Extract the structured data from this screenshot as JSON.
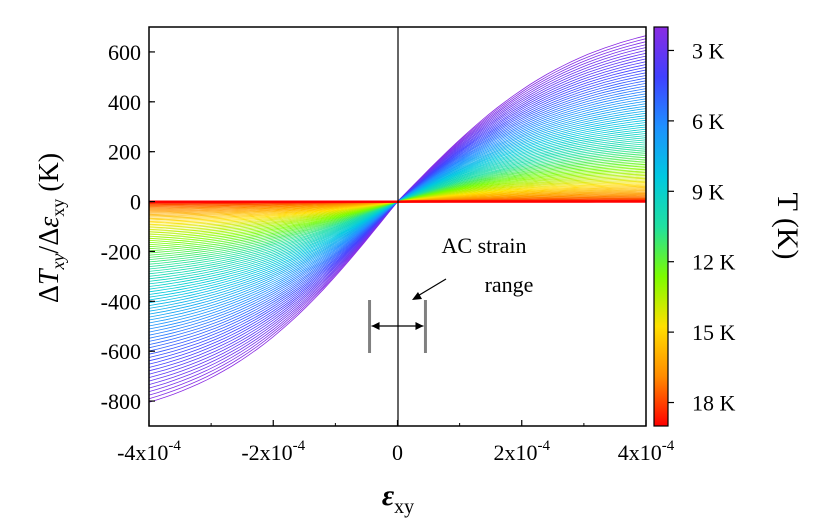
{
  "chart_data": {
    "type": "line",
    "title": "",
    "xlabel_main": "ε",
    "xlabel_sub": "xy",
    "ylabel_parts": {
      "delta1": "Δ",
      "t": "T",
      "t_sub": "xy",
      "slash_delta": "/Δ",
      "eps": "ε",
      "eps_sub": "xy",
      "unit": " (K)"
    },
    "xlim": [
      -0.0004,
      0.0004
    ],
    "ylim": [
      -900,
      700
    ],
    "x_ticks": [
      {
        "value": -0.0004,
        "mantissa": "-4x10",
        "exp": "-4"
      },
      {
        "value": -0.0002,
        "mantissa": "-2x10",
        "exp": "-4"
      },
      {
        "value": 0,
        "mantissa": "0",
        "exp": ""
      },
      {
        "value": 0.0002,
        "mantissa": "2x10",
        "exp": "-4"
      },
      {
        "value": 0.0004,
        "mantissa": "4x10",
        "exp": "-4"
      }
    ],
    "y_ticks": [
      {
        "value": 600,
        "label": "600"
      },
      {
        "value": 400,
        "label": "400"
      },
      {
        "value": 200,
        "label": "200"
      },
      {
        "value": 0,
        "label": "0"
      },
      {
        "value": -200,
        "label": "-200"
      },
      {
        "value": -400,
        "label": "-400"
      },
      {
        "value": -600,
        "label": "-600"
      },
      {
        "value": -800,
        "label": "-800"
      }
    ],
    "grid": false,
    "series_family": {
      "parameter": "T",
      "unit": "K",
      "t_min": 2,
      "t_max": 19,
      "count": 90,
      "endpoint_max_positive": 665,
      "endpoint_max_negative": -805,
      "description_of_shape": "antisymmetric curves through origin; amplitude decreases with T"
    },
    "colorbar": {
      "title": "T (K)",
      "tick_labels": [
        {
          "value": 3,
          "label": "3 K"
        },
        {
          "value": 6,
          "label": "6 K"
        },
        {
          "value": 9,
          "label": "9 K"
        },
        {
          "value": 12,
          "label": "12 K"
        },
        {
          "value": 15,
          "label": "15 K"
        },
        {
          "value": 18,
          "label": "18 K"
        }
      ],
      "range": [
        2,
        19
      ],
      "colormap": [
        "#ff0000",
        "#ff8c00",
        "#ffe000",
        "#7cfc00",
        "#20e0a0",
        "#00c8e0",
        "#1e90ff",
        "#4040ff",
        "#8a2be2"
      ]
    },
    "annotation": {
      "line1": "AC strain",
      "line2": "range",
      "range_x": [
        -4.5e-05,
        4.5e-05
      ]
    }
  }
}
